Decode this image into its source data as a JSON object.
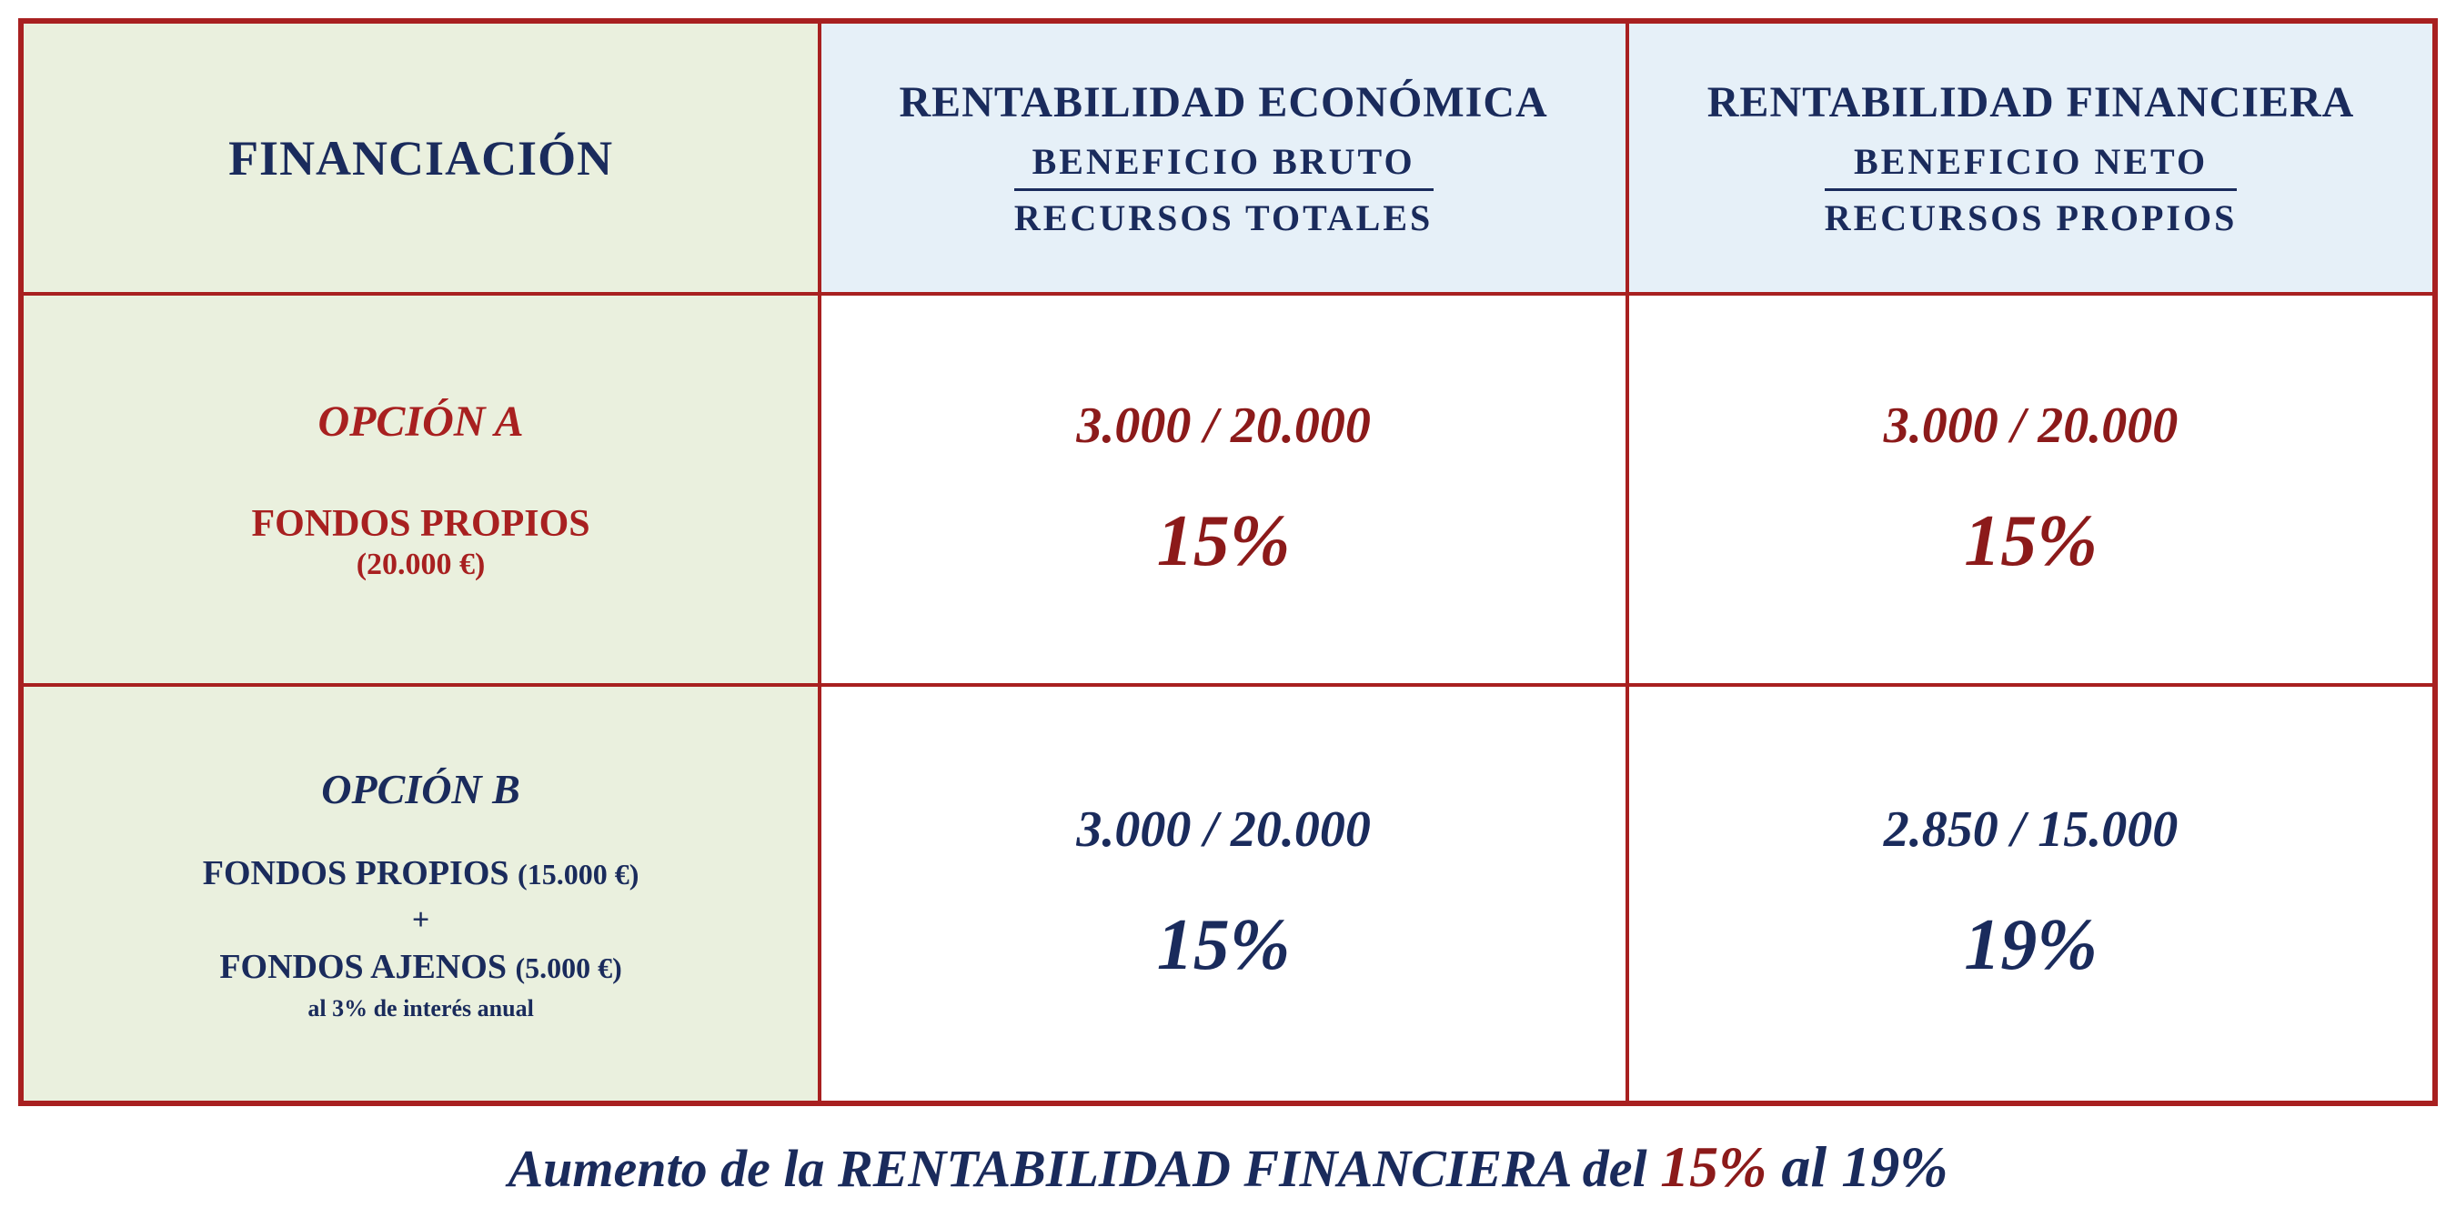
{
  "header": {
    "col1_title": "FINANCIACIÓN",
    "col2_title": "RENTABILIDAD ECONÓMICA",
    "col2_frac_top": "BENEFICIO BRUTO",
    "col2_frac_bot": "RECURSOS TOTALES",
    "col3_title": "RENTABILIDAD FINANCIERA",
    "col3_frac_top": "BENEFICIO NETO",
    "col3_frac_bot": "RECURSOS PROPIOS"
  },
  "optionA": {
    "title": "OPCIÓN A",
    "sub_line1": "FONDOS PROPIOS",
    "sub_line2": "(20.000 €)",
    "econ_calc": "3.000 / 20.000",
    "econ_pct": "15%",
    "fin_calc": "3.000 / 20.000",
    "fin_pct": "15%"
  },
  "optionB": {
    "title": "OPCIÓN B",
    "line1_label": "FONDOS PROPIOS",
    "line1_amount": "(15.000 €)",
    "plus": "+",
    "line2_label": "FONDOS AJENOS",
    "line2_amount": "(5.000 €)",
    "note": "al 3% de interés anual",
    "econ_calc": "3.000 / 20.000",
    "econ_pct": "15%",
    "fin_calc": "2.850 / 15.000",
    "fin_pct": "19%"
  },
  "footer": {
    "part1": "Aumento de la RENTABILIDAD FINANCIERA ",
    "part2": "del  ",
    "part3": "15%   ",
    "part4": "al  19%"
  },
  "colors": {
    "border": "#a82020",
    "bg_left": "#eaf0de",
    "bg_header_right": "#e6f0f8",
    "text_navy": "#1a2b5c",
    "text_dark_red": "#8c1a1a",
    "text_red": "#a82020"
  }
}
